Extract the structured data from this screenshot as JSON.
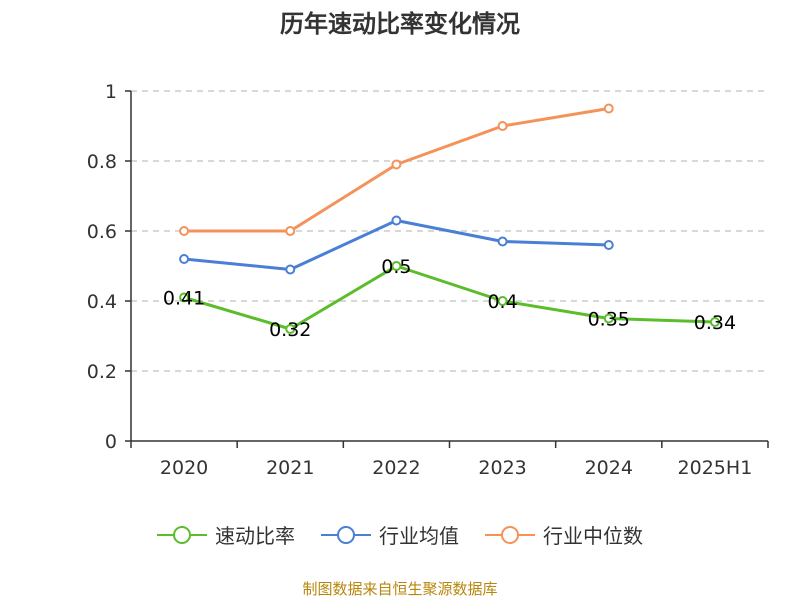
{
  "chart_data": {
    "type": "line",
    "title": "历年速动比率变化情况",
    "categories": [
      "2020",
      "2021",
      "2022",
      "2023",
      "2024",
      "2025H1"
    ],
    "y_ticks": [
      "0",
      "0.2",
      "0.4",
      "0.6",
      "0.8",
      "1"
    ],
    "ylim": [
      0,
      1
    ],
    "grid": true,
    "legend_position": "bottom",
    "series": [
      {
        "name": "速动比率",
        "color": "#5bbd2b",
        "values": [
          0.41,
          0.32,
          0.5,
          0.4,
          0.35,
          0.34
        ],
        "labels": [
          "0.41",
          "0.32",
          "0.5",
          "0.4",
          "0.35",
          "0.34"
        ],
        "show_labels": true
      },
      {
        "name": "行业均值",
        "color": "#4a7fd6",
        "values": [
          0.52,
          0.49,
          0.63,
          0.57,
          0.56,
          null
        ],
        "show_labels": false
      },
      {
        "name": "行业中位数",
        "color": "#f5925a",
        "values": [
          0.6,
          0.6,
          0.79,
          0.9,
          0.95,
          null
        ],
        "show_labels": false
      }
    ]
  },
  "source": "制图数据来自恒生聚源数据库"
}
